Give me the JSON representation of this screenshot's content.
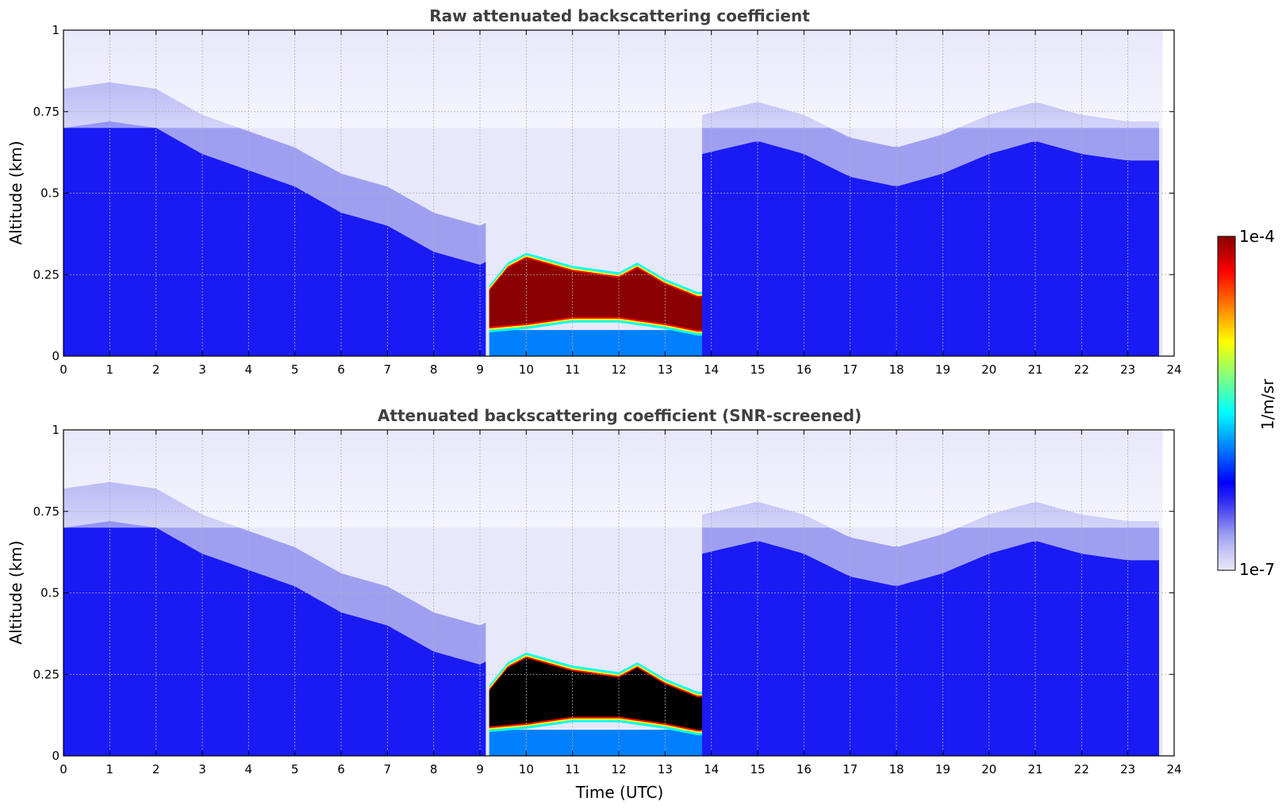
{
  "chart_data": [
    {
      "type": "heatmap",
      "title": "Raw attenuated backscattering coefficient",
      "xlabel": "",
      "ylabel": "Altitude (km)",
      "xlim": [
        0,
        24
      ],
      "ylim": [
        0,
        1
      ],
      "x_ticks": [
        "0",
        "1",
        "2",
        "3",
        "4",
        "5",
        "6",
        "7",
        "8",
        "9",
        "10",
        "11",
        "12",
        "13",
        "14",
        "15",
        "16",
        "17",
        "18",
        "19",
        "20",
        "21",
        "22",
        "23",
        "24"
      ],
      "y_ticks": [
        "0",
        "0.25",
        "0.5",
        "0.75",
        "1"
      ],
      "grid": true,
      "data_end_x": 23.75,
      "dense_layer_top": [
        [
          0,
          0.7
        ],
        [
          1,
          0.72
        ],
        [
          2,
          0.7
        ],
        [
          3,
          0.62
        ],
        [
          4,
          0.57
        ],
        [
          5,
          0.52
        ],
        [
          6,
          0.44
        ],
        [
          7,
          0.4
        ],
        [
          8,
          0.32
        ],
        [
          9,
          0.28
        ],
        [
          13.8,
          0.62
        ],
        [
          15,
          0.66
        ],
        [
          16,
          0.62
        ],
        [
          17,
          0.55
        ],
        [
          18,
          0.52
        ],
        [
          19,
          0.56
        ],
        [
          20,
          0.62
        ],
        [
          21,
          0.66
        ],
        [
          22,
          0.62
        ],
        [
          23,
          0.6
        ],
        [
          23.75,
          0.6
        ]
      ],
      "fog_layer": {
        "x_start": 9.2,
        "x_end": 13.8,
        "base": [
          [
            9.2,
            0.09
          ],
          [
            10,
            0.1
          ],
          [
            11,
            0.12
          ],
          [
            12,
            0.12
          ],
          [
            13,
            0.1
          ],
          [
            13.7,
            0.08
          ]
        ],
        "top": [
          [
            9.2,
            0.2
          ],
          [
            9.6,
            0.27
          ],
          [
            10,
            0.3
          ],
          [
            11,
            0.26
          ],
          [
            12,
            0.24
          ],
          [
            12.4,
            0.27
          ],
          [
            13,
            0.22
          ],
          [
            13.7,
            0.18
          ]
        ],
        "peak": ">1e-4"
      },
      "clear_gap": {
        "x_start": 9.15,
        "x_end": 13.8
      }
    },
    {
      "type": "heatmap",
      "title": "Attenuated backscattering coefficient (SNR-screened)",
      "xlabel": "Time (UTC)",
      "ylabel": "Altitude (km)",
      "xlim": [
        0,
        24
      ],
      "ylim": [
        0,
        1
      ],
      "x_ticks": [
        "0",
        "1",
        "2",
        "3",
        "4",
        "5",
        "6",
        "7",
        "8",
        "9",
        "10",
        "11",
        "12",
        "13",
        "14",
        "15",
        "16",
        "17",
        "18",
        "19",
        "20",
        "21",
        "22",
        "23",
        "24"
      ],
      "y_ticks": [
        "0",
        "0.25",
        "0.5",
        "0.75",
        "1"
      ],
      "grid": true,
      "data_end_x": 23.75,
      "saturated_color": "#000000"
    }
  ],
  "colorbar": {
    "label": "1/m/sr",
    "max_label": "1e-4",
    "min_label": "1e-7",
    "colormap": [
      "#e8e8fb",
      "#c8c8f6",
      "#9f9ff2",
      "#6464f0",
      "#2a2af2",
      "#0000ff",
      "#0040ff",
      "#0080ff",
      "#00c0ff",
      "#00ffff",
      "#40ffbf",
      "#80ff80",
      "#bfff40",
      "#ffff00",
      "#ffbf00",
      "#ff8000",
      "#ff4000",
      "#ff0000",
      "#c00000",
      "#8b0000"
    ]
  },
  "colors": {
    "background_light": "#e8e8fb",
    "layer_mid": "#9f9ff2",
    "layer_dense": "#1a1af5",
    "fog_peak": "#8b0000",
    "saturated": "#000000"
  }
}
